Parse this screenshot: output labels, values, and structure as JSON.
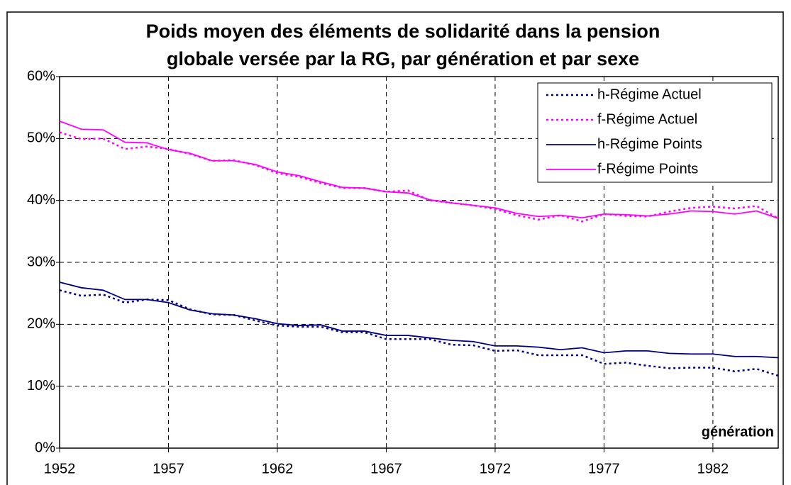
{
  "chart_data": {
    "type": "line",
    "title": [
      "Poids moyen des éléments de solidarité dans la pension",
      "globale versée par la RG, par génération et par sexe"
    ],
    "xlabel": "génération",
    "x": [
      1952,
      1953,
      1954,
      1955,
      1956,
      1957,
      1958,
      1959,
      1960,
      1961,
      1962,
      1963,
      1964,
      1965,
      1966,
      1967,
      1968,
      1969,
      1970,
      1971,
      1972,
      1973,
      1974,
      1975,
      1976,
      1977,
      1978,
      1979,
      1980,
      1981,
      1982,
      1983,
      1984,
      1985
    ],
    "xlim": [
      1952,
      1985
    ],
    "xticks": [
      1952,
      1957,
      1962,
      1967,
      1972,
      1977,
      1982
    ],
    "ylim": [
      0,
      60
    ],
    "yticks": [
      {
        "value": 0,
        "label": "0%"
      },
      {
        "value": 10,
        "label": "10%"
      },
      {
        "value": 20,
        "label": "20%"
      },
      {
        "value": 30,
        "label": "30%"
      },
      {
        "value": 40,
        "label": "40%"
      },
      {
        "value": 50,
        "label": "50%"
      },
      {
        "value": 60,
        "label": "60%"
      }
    ],
    "grid": true,
    "legend": "upper right",
    "series": [
      {
        "name": "h-Régime Actuel",
        "color": "#000080",
        "dash": true,
        "values": [
          25.5,
          24.6,
          24.8,
          23.5,
          24.0,
          23.9,
          22.4,
          21.6,
          21.5,
          20.6,
          19.8,
          19.6,
          19.6,
          18.7,
          18.7,
          17.6,
          17.6,
          17.6,
          16.7,
          16.6,
          15.7,
          15.8,
          15.0,
          15.0,
          15.0,
          13.6,
          13.8,
          13.3,
          12.9,
          13.0,
          13.0,
          12.4,
          12.8,
          11.7
        ]
      },
      {
        "name": "f-Régime Actuel",
        "color": "#ff00ff",
        "dash": true,
        "values": [
          51.0,
          49.9,
          50.0,
          48.3,
          48.7,
          48.3,
          47.5,
          46.4,
          46.5,
          45.7,
          44.4,
          43.8,
          42.8,
          42.0,
          42.0,
          41.4,
          41.6,
          40.0,
          39.6,
          39.2,
          38.6,
          37.6,
          36.9,
          37.6,
          36.6,
          37.8,
          37.5,
          37.4,
          38.2,
          38.8,
          39.0,
          38.7,
          39.1,
          37.1
        ]
      },
      {
        "name": "h-Régime Points",
        "color": "#000080",
        "dash": false,
        "values": [
          26.8,
          25.9,
          25.5,
          24.0,
          24.0,
          23.5,
          22.3,
          21.7,
          21.5,
          20.9,
          20.1,
          19.8,
          19.9,
          18.9,
          18.9,
          18.2,
          18.2,
          17.8,
          17.4,
          17.2,
          16.5,
          16.5,
          16.3,
          15.9,
          16.2,
          15.4,
          15.7,
          15.7,
          15.3,
          15.2,
          15.2,
          14.8,
          14.8,
          14.6
        ]
      },
      {
        "name": "f-Régime Points",
        "color": "#ff00ff",
        "dash": false,
        "values": [
          52.8,
          51.5,
          51.4,
          49.4,
          49.3,
          48.2,
          47.6,
          46.4,
          46.4,
          45.8,
          44.6,
          44.0,
          43.0,
          42.1,
          42.0,
          41.4,
          41.2,
          40.1,
          39.6,
          39.2,
          38.8,
          37.9,
          37.4,
          37.6,
          37.2,
          37.8,
          37.7,
          37.5,
          37.8,
          38.3,
          38.2,
          37.8,
          38.3,
          37.1
        ]
      }
    ]
  }
}
